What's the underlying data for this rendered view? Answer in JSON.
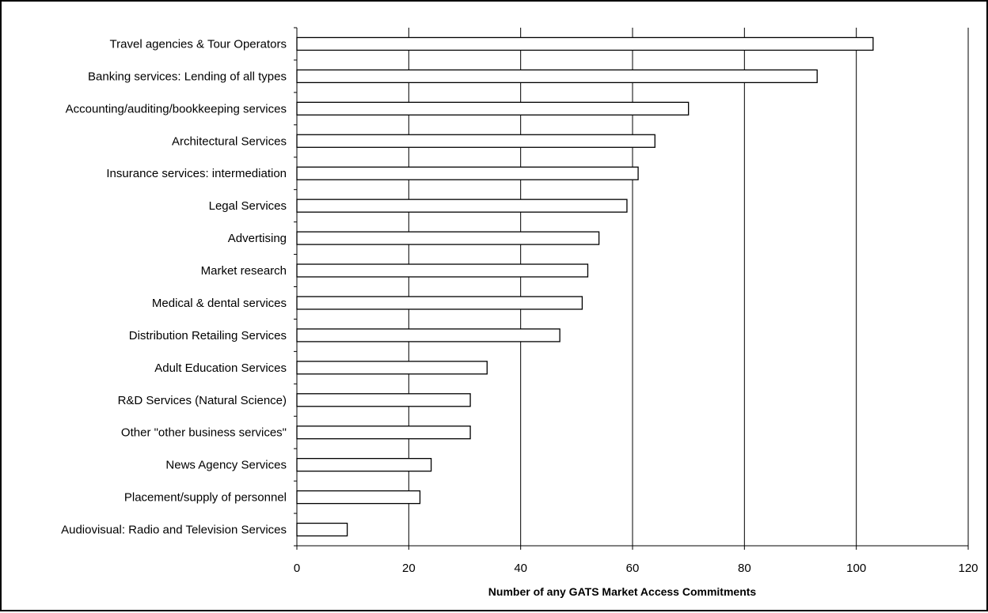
{
  "chart_data": {
    "type": "bar",
    "orientation": "horizontal",
    "categories": [
      "Travel agencies & Tour Operators",
      "Banking services: Lending of all types",
      "Accounting/auditing/bookkeeping services",
      "Architectural Services",
      "Insurance services: intermediation",
      "Legal Services",
      "Advertising",
      "Market research",
      "Medical & dental services",
      "Distribution Retailing Services",
      "Adult Education Services",
      "R&D Services (Natural Science)",
      "Other \"other business services\"",
      "News Agency Services",
      "Placement/supply of personnel",
      "Audiovisual: Radio and Television Services"
    ],
    "values": [
      103,
      93,
      70,
      64,
      61,
      59,
      54,
      52,
      51,
      47,
      34,
      31,
      31,
      24,
      22,
      9
    ],
    "xlabel": "Number of any GATS Market Access Commitments",
    "ylabel": "",
    "xlim": [
      0,
      120
    ],
    "xticks": [
      "0",
      "20",
      "40",
      "60",
      "80",
      "100",
      "120"
    ],
    "grid": "vertical",
    "bar_fill": "#ffffff",
    "bar_stroke": "#000000",
    "grid_color": "#000000"
  }
}
